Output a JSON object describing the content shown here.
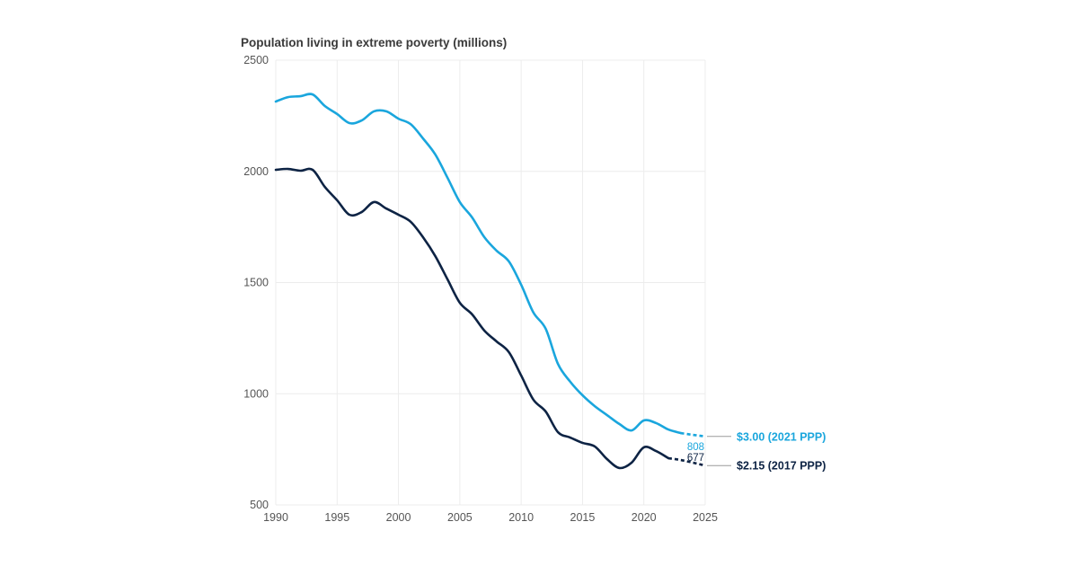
{
  "chart_data": {
    "type": "line",
    "title": "Population living in extreme poverty (millions)",
    "xlabel": "",
    "ylabel": "",
    "xlim": [
      1990,
      2025
    ],
    "ylim": [
      500,
      2500
    ],
    "x_ticks": [
      "1990",
      "1995",
      "2000",
      "2005",
      "2010",
      "2015",
      "2020",
      "2025"
    ],
    "y_ticks": [
      "500",
      "1000",
      "1500",
      "2000",
      "2500"
    ],
    "grid": true,
    "x": [
      1990,
      1991,
      1992,
      1993,
      1994,
      1995,
      1996,
      1997,
      1998,
      1999,
      2000,
      2001,
      2002,
      2003,
      2004,
      2005,
      2006,
      2007,
      2008,
      2009,
      2010,
      2011,
      2012,
      2013,
      2014,
      2015,
      2016,
      2017,
      2018,
      2019,
      2020,
      2021,
      2022,
      2023,
      2024,
      2025
    ],
    "series": [
      {
        "name": "$3.00 (2021 PPP)",
        "color": "#1aa6dd",
        "end_label": "808",
        "projection_start": 2023,
        "values": [
          2314,
          2334,
          2338,
          2346,
          2294,
          2258,
          2217,
          2229,
          2270,
          2270,
          2237,
          2212,
          2148,
          2076,
          1971,
          1862,
          1793,
          1704,
          1643,
          1595,
          1490,
          1365,
          1292,
          1134,
          1054,
          993,
          944,
          904,
          864,
          835,
          880,
          868,
          839,
          823,
          815,
          808
        ]
      },
      {
        "name": "$2.15 (2017 PPP)",
        "color": "#0d2344",
        "end_label": "677",
        "projection_start": 2022,
        "values": [
          2007,
          2011,
          2003,
          2007,
          1930,
          1870,
          1805,
          1817,
          1862,
          1833,
          1805,
          1773,
          1704,
          1619,
          1514,
          1409,
          1357,
          1284,
          1235,
          1187,
          1082,
          973,
          920,
          827,
          803,
          779,
          763,
          706,
          666,
          690,
          759,
          742,
          710,
          702,
          690,
          677
        ]
      }
    ],
    "legend": "right-end labels"
  }
}
